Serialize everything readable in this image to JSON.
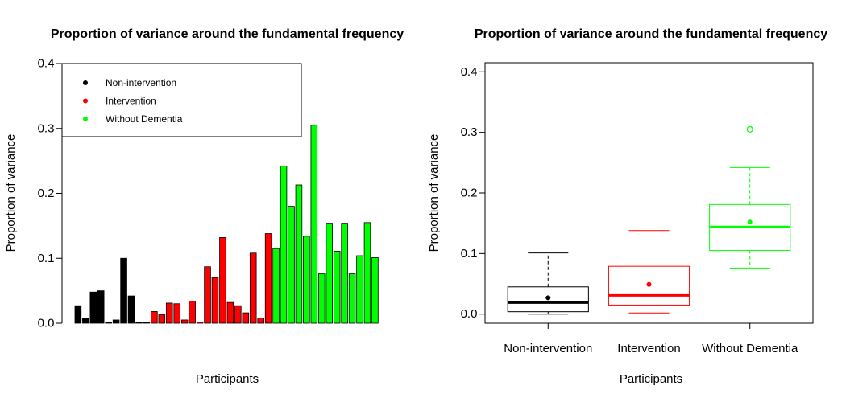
{
  "chart_data": [
    {
      "type": "bar",
      "title": "Proportion of variance around the fundamental frequency",
      "xlabel": "Participants",
      "ylabel": "Proportion of variance",
      "ylim": [
        0,
        0.4
      ],
      "yticks": [
        "0.0",
        "0.1",
        "0.2",
        "0.3",
        "0.4"
      ],
      "legend_position": "top-left",
      "legend": [
        {
          "label": "Non-intervention",
          "color": "#000000"
        },
        {
          "label": "Intervention",
          "color": "#ff0000"
        },
        {
          "label": "Without Dementia",
          "color": "#00ff00"
        }
      ],
      "series": [
        {
          "name": "Non-intervention",
          "color": "#000000",
          "values": [
            0.027,
            0.008,
            0.048,
            0.05,
            0.001,
            0.005,
            0.1,
            0.042,
            0.001,
            0.001
          ]
        },
        {
          "name": "Intervention",
          "color": "#ff0000",
          "values": [
            0.018,
            0.013,
            0.031,
            0.03,
            0.005,
            0.034,
            0.002,
            0.087,
            0.07,
            0.132,
            0.032,
            0.027,
            0.016,
            0.108,
            0.008,
            0.138
          ]
        },
        {
          "name": "Without Dementia",
          "color": "#00ff00",
          "values": [
            0.115,
            0.242,
            0.18,
            0.213,
            0.134,
            0.305,
            0.076,
            0.154,
            0.111,
            0.154,
            0.076,
            0.104,
            0.155,
            0.101
          ]
        }
      ]
    },
    {
      "type": "boxplot",
      "title": "Proportion of variance around the fundamental frequency",
      "xlabel": "Participants",
      "ylabel": "Proportion of variance",
      "ylim": [
        -0.015,
        0.415
      ],
      "yticks": [
        "0.0",
        "0.1",
        "0.2",
        "0.3",
        "0.4"
      ],
      "categories": [
        "Non-intervention",
        "Intervention",
        "Without Dementia"
      ],
      "boxes": [
        {
          "name": "Non-intervention",
          "color": "#000000",
          "min": 0.0,
          "q1": 0.004,
          "median": 0.019,
          "q3": 0.045,
          "max": 0.101,
          "mean": 0.027,
          "outliers": []
        },
        {
          "name": "Intervention",
          "color": "#ff0000",
          "min": 0.002,
          "q1": 0.015,
          "median": 0.031,
          "q3": 0.079,
          "max": 0.138,
          "mean": 0.049,
          "outliers": []
        },
        {
          "name": "Without Dementia",
          "color": "#00ff00",
          "min": 0.076,
          "q1": 0.105,
          "median": 0.144,
          "q3": 0.181,
          "max": 0.242,
          "mean": 0.152,
          "outliers": [
            0.305
          ]
        }
      ]
    }
  ]
}
